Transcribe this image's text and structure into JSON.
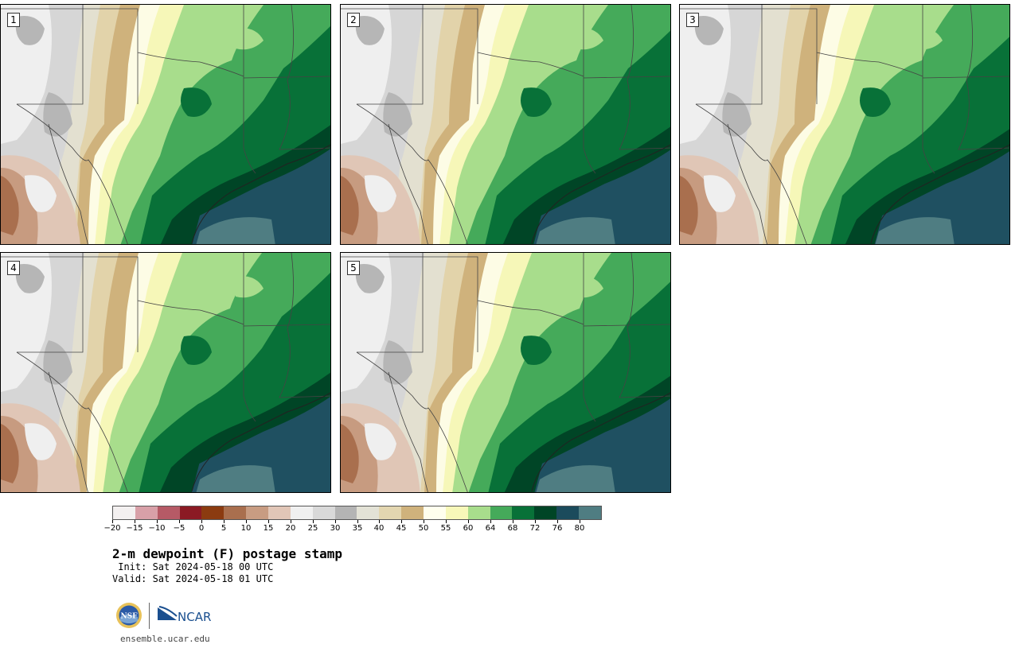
{
  "panels": [
    {
      "label": "1"
    },
    {
      "label": "2"
    },
    {
      "label": "3"
    },
    {
      "label": "4"
    },
    {
      "label": "5"
    }
  ],
  "colorbar": {
    "colors": [
      "#f3f0f0",
      "#d8a0a8",
      "#b65a66",
      "#8b1a24",
      "#8b3b10",
      "#a96f4e",
      "#c89c82",
      "#e1c6b7",
      "#f0f0f0",
      "#d9d9d9",
      "#b4b4b4",
      "#e3e2d6",
      "#e3d6b0",
      "#cfb27c",
      "#ffffee",
      "#f7f8b9",
      "#a8dd8c",
      "#45aa5a",
      "#087138",
      "#004526",
      "#1b4b5c",
      "#4f7d82"
    ],
    "ticks": [
      "−20",
      "−15",
      "−10",
      "−5",
      "0",
      "5",
      "10",
      "15",
      "20",
      "25",
      "30",
      "35",
      "40",
      "45",
      "50",
      "55",
      "60",
      "64",
      "68",
      "72",
      "76",
      "80"
    ]
  },
  "title": "2-m dewpoint (F) postage stamp",
  "init": " Init: Sat 2024-05-18 00 UTC",
  "valid": "Valid: Sat 2024-05-18 01 UTC",
  "logos": {
    "nsf": "NSF",
    "ncar": "NCAR"
  },
  "site": "ensemble.ucar.edu"
}
